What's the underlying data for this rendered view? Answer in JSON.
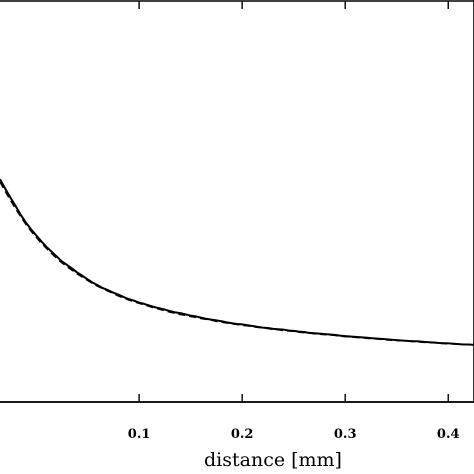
{
  "chart_data": {
    "type": "line",
    "title": "",
    "xlabel": "distance [mm]",
    "ylabel": "",
    "xlim": [
      -0.035,
      0.425
    ],
    "ylim": [
      0.0,
      1.0
    ],
    "x_ticks": [
      0.1,
      0.2,
      0.3,
      0.4
    ],
    "x_tick_labels": [
      "0.1",
      "0.2",
      "0.3",
      "0.4"
    ],
    "grid": false,
    "series": [
      {
        "style": "solid",
        "x": [
          -0.035,
          -0.03,
          -0.025,
          -0.02,
          -0.015,
          -0.01,
          -0.005,
          0.0,
          0.005,
          0.01,
          0.015,
          0.02,
          0.025,
          0.03,
          0.035,
          0.04,
          0.045,
          0.05,
          0.055,
          0.06,
          0.065,
          0.07,
          0.075,
          0.08,
          0.085,
          0.09,
          0.095,
          0.1,
          0.105,
          0.11,
          0.115,
          0.12,
          0.125,
          0.13,
          0.135,
          0.14,
          0.145,
          0.15,
          0.155,
          0.16,
          0.165,
          0.17,
          0.175,
          0.18,
          0.185,
          0.19,
          0.195,
          0.2,
          0.205,
          0.21,
          0.215,
          0.22,
          0.225,
          0.23,
          0.235,
          0.24,
          0.245,
          0.25,
          0.255,
          0.26,
          0.265,
          0.27,
          0.275,
          0.28,
          0.285,
          0.29,
          0.295,
          0.3,
          0.305,
          0.31,
          0.315,
          0.32,
          0.325,
          0.33,
          0.335,
          0.34,
          0.345,
          0.35,
          0.355,
          0.36,
          0.365,
          0.37,
          0.375,
          0.38,
          0.385,
          0.39,
          0.395,
          0.4,
          0.405,
          0.41,
          0.415,
          0.42,
          0.425
        ],
        "y": [
          0.554,
          0.531,
          0.509,
          0.488,
          0.466,
          0.447,
          0.43,
          0.415,
          0.4,
          0.386,
          0.374,
          0.362,
          0.35,
          0.341,
          0.332,
          0.322,
          0.314,
          0.305,
          0.297,
          0.29,
          0.283,
          0.278,
          0.272,
          0.267,
          0.261,
          0.256,
          0.252,
          0.247,
          0.244,
          0.24,
          0.236,
          0.233,
          0.23,
          0.226,
          0.223,
          0.221,
          0.218,
          0.215,
          0.213,
          0.21,
          0.207,
          0.205,
          0.203,
          0.201,
          0.198,
          0.196,
          0.194,
          0.193,
          0.191,
          0.189,
          0.187,
          0.185,
          0.184,
          0.182,
          0.181,
          0.18,
          0.178,
          0.177,
          0.175,
          0.174,
          0.172,
          0.171,
          0.17,
          0.169,
          0.168,
          0.167,
          0.165,
          0.164,
          0.163,
          0.162,
          0.161,
          0.16,
          0.159,
          0.158,
          0.157,
          0.156,
          0.155,
          0.154,
          0.153,
          0.152,
          0.151,
          0.151,
          0.15,
          0.149,
          0.148,
          0.147,
          0.146,
          0.146,
          0.145,
          0.144,
          0.143,
          0.143,
          0.142
        ]
      },
      {
        "style": "dashed",
        "x": [
          -0.035,
          -0.03,
          -0.025,
          -0.02,
          -0.015,
          -0.01,
          -0.005,
          0.0,
          0.005,
          0.01,
          0.015,
          0.02,
          0.025,
          0.03,
          0.035,
          0.04,
          0.045,
          0.05,
          0.055,
          0.06,
          0.065,
          0.07,
          0.075,
          0.08,
          0.085,
          0.09,
          0.095,
          0.1,
          0.105,
          0.11,
          0.115,
          0.12,
          0.125,
          0.13,
          0.135,
          0.14,
          0.145,
          0.15,
          0.155,
          0.16,
          0.165,
          0.17,
          0.175,
          0.18,
          0.185,
          0.19,
          0.195,
          0.2,
          0.205,
          0.21,
          0.215,
          0.22,
          0.225,
          0.23,
          0.235,
          0.24,
          0.245,
          0.25,
          0.255,
          0.26,
          0.265,
          0.27,
          0.275,
          0.28,
          0.285,
          0.29,
          0.295,
          0.3,
          0.305,
          0.31,
          0.315,
          0.32,
          0.325,
          0.33,
          0.335,
          0.34,
          0.345,
          0.35,
          0.355,
          0.36,
          0.365,
          0.37,
          0.375,
          0.38,
          0.385,
          0.39,
          0.395,
          0.4,
          0.405,
          0.41,
          0.415,
          0.42,
          0.425
        ],
        "y": [
          0.548,
          0.525,
          0.503,
          0.482,
          0.462,
          0.443,
          0.426,
          0.411,
          0.396,
          0.383,
          0.37,
          0.358,
          0.347,
          0.337,
          0.328,
          0.319,
          0.311,
          0.303,
          0.295,
          0.288,
          0.282,
          0.276,
          0.27,
          0.264,
          0.259,
          0.254,
          0.25,
          0.246,
          0.242,
          0.238,
          0.234,
          0.231,
          0.227,
          0.224,
          0.221,
          0.218,
          0.216,
          0.213,
          0.211,
          0.208,
          0.206,
          0.204,
          0.201,
          0.199,
          0.197,
          0.195,
          0.193,
          0.191,
          0.19,
          0.188,
          0.186,
          0.185,
          0.183,
          0.181,
          0.18,
          0.178,
          0.177,
          0.176,
          0.174,
          0.173,
          0.172,
          0.17,
          0.169,
          0.168,
          0.167,
          0.166,
          0.164,
          0.163,
          0.162,
          0.161,
          0.16,
          0.159,
          0.158,
          0.157,
          0.156,
          0.155,
          0.154,
          0.153,
          0.153,
          0.152,
          0.151,
          0.15,
          0.149,
          0.148,
          0.148,
          0.147,
          0.146,
          0.145,
          0.145,
          0.144,
          0.143,
          0.143,
          0.142
        ]
      }
    ]
  }
}
